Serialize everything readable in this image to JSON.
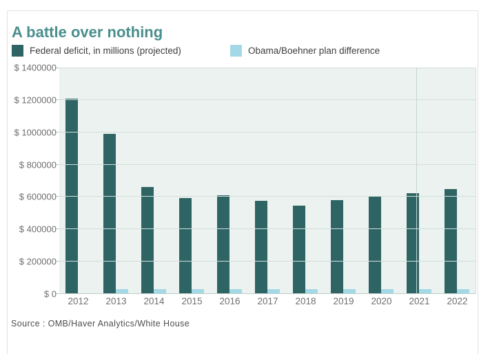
{
  "chart": {
    "title": "A battle over nothing",
    "source": "Source : OMB/Haver Analytics/White House",
    "colors": {
      "title": "#4a8e8d",
      "deficit_bar": "#2e6463",
      "difference_bar": "#a3d8e6",
      "plot_background": "#ecf2ef",
      "gridline": "#cfdfdb"
    }
  },
  "chart_data": {
    "type": "bar",
    "title": "A battle over nothing",
    "categories": [
      "2012",
      "2013",
      "2014",
      "2015",
      "2016",
      "2017",
      "2018",
      "2019",
      "2020",
      "2021",
      "2022"
    ],
    "series": [
      {
        "name": "Federal deficit, in millions (projected)",
        "color": "#2e6463",
        "values": [
          1210000,
          990000,
          660000,
          595000,
          610000,
          575000,
          545000,
          580000,
          600000,
          625000,
          650000
        ]
      },
      {
        "name": "Obama/Boehner plan difference",
        "color": "#a3d8e6",
        "values": [
          0,
          30000,
          30000,
          30000,
          30000,
          30000,
          30000,
          30000,
          30000,
          30000,
          30000
        ]
      }
    ],
    "ylim": [
      0,
      1400000
    ],
    "ytick_step": 200000,
    "ytick_labels": [
      "$ 0",
      "$ 200000",
      "$ 400000",
      "$ 600000",
      "$ 800000",
      "$ 1000000",
      "$ 1200000",
      "$ 1400000"
    ],
    "grid": true,
    "vertical_divider_fraction": 0.857,
    "legend_position": "top",
    "source": "Source : OMB/Haver Analytics/White House"
  }
}
